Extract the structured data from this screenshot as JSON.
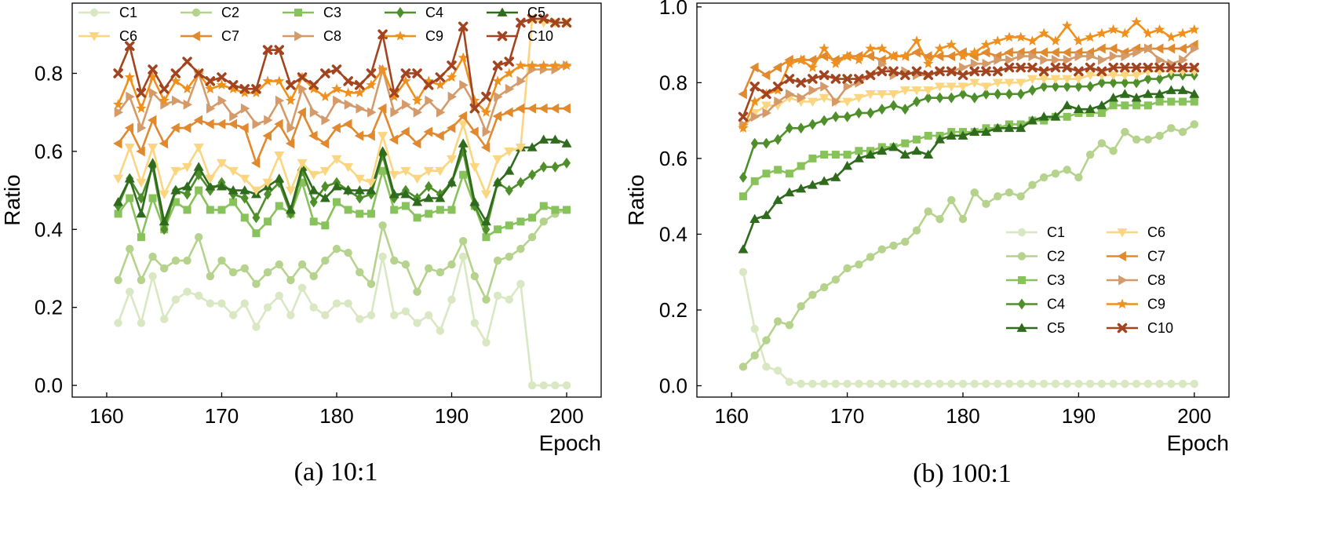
{
  "chart_data": [
    {
      "type": "line",
      "caption": "(a) 10:1",
      "xlabel": "Epoch",
      "ylabel": "Ratio",
      "xlim": [
        157,
        203
      ],
      "ylim": [
        -0.03,
        0.98
      ],
      "xticks": [
        160,
        170,
        180,
        190,
        200
      ],
      "yticks": [
        0.0,
        0.2,
        0.4,
        0.6,
        0.8
      ],
      "ytick_labels": [
        "0.0",
        "0.2",
        "0.4",
        "0.6",
        "0.8"
      ],
      "legend_placement": "top",
      "x_start": 161,
      "series": [
        {
          "name": "C1",
          "values": [
            0.16,
            0.24,
            0.16,
            0.28,
            0.17,
            0.22,
            0.24,
            0.23,
            0.21,
            0.21,
            0.18,
            0.21,
            0.15,
            0.2,
            0.23,
            0.18,
            0.25,
            0.2,
            0.18,
            0.21,
            0.21,
            0.17,
            0.18,
            0.33,
            0.18,
            0.19,
            0.16,
            0.18,
            0.14,
            0.22,
            0.33,
            0.16,
            0.11,
            0.23,
            0.22,
            0.26,
            0.0,
            0.0,
            0.0,
            0.0
          ]
        },
        {
          "name": "C2",
          "values": [
            0.27,
            0.35,
            0.27,
            0.33,
            0.3,
            0.32,
            0.32,
            0.38,
            0.28,
            0.32,
            0.29,
            0.3,
            0.26,
            0.29,
            0.31,
            0.27,
            0.31,
            0.28,
            0.32,
            0.35,
            0.34,
            0.29,
            0.26,
            0.41,
            0.32,
            0.31,
            0.24,
            0.3,
            0.29,
            0.31,
            0.37,
            0.28,
            0.22,
            0.32,
            0.33,
            0.35,
            0.38,
            0.42,
            0.44,
            0.45
          ]
        },
        {
          "name": "C3",
          "values": [
            0.44,
            0.48,
            0.38,
            0.48,
            0.4,
            0.47,
            0.45,
            0.5,
            0.45,
            0.45,
            0.47,
            0.43,
            0.39,
            0.42,
            0.46,
            0.44,
            0.52,
            0.42,
            0.41,
            0.47,
            0.45,
            0.44,
            0.44,
            0.55,
            0.45,
            0.46,
            0.43,
            0.44,
            0.45,
            0.45,
            0.54,
            0.46,
            0.38,
            0.4,
            0.41,
            0.42,
            0.43,
            0.46,
            0.45,
            0.45
          ]
        },
        {
          "name": "C4",
          "values": [
            0.46,
            0.53,
            0.48,
            0.56,
            0.4,
            0.5,
            0.49,
            0.54,
            0.5,
            0.52,
            0.49,
            0.48,
            0.43,
            0.49,
            0.52,
            0.44,
            0.55,
            0.47,
            0.51,
            0.52,
            0.5,
            0.48,
            0.49,
            0.59,
            0.48,
            0.5,
            0.48,
            0.51,
            0.49,
            0.52,
            0.6,
            0.46,
            0.4,
            0.52,
            0.5,
            0.52,
            0.54,
            0.56,
            0.56,
            0.57
          ]
        },
        {
          "name": "C5",
          "values": [
            0.47,
            0.53,
            0.44,
            0.57,
            0.42,
            0.5,
            0.51,
            0.56,
            0.51,
            0.51,
            0.5,
            0.5,
            0.49,
            0.51,
            0.53,
            0.45,
            0.56,
            0.5,
            0.48,
            0.51,
            0.5,
            0.5,
            0.5,
            0.6,
            0.49,
            0.49,
            0.47,
            0.48,
            0.48,
            0.52,
            0.62,
            0.47,
            0.42,
            0.52,
            0.55,
            0.61,
            0.61,
            0.63,
            0.63,
            0.62
          ]
        },
        {
          "name": "C6",
          "values": [
            0.53,
            0.61,
            0.52,
            0.61,
            0.49,
            0.55,
            0.56,
            0.61,
            0.53,
            0.57,
            0.55,
            0.53,
            0.5,
            0.52,
            0.59,
            0.5,
            0.57,
            0.54,
            0.55,
            0.58,
            0.56,
            0.53,
            0.52,
            0.64,
            0.54,
            0.55,
            0.53,
            0.55,
            0.55,
            0.58,
            0.67,
            0.56,
            0.49,
            0.58,
            0.6,
            0.61,
            0.94,
            0.93,
            0.93,
            0.93
          ]
        },
        {
          "name": "C7",
          "values": [
            0.62,
            0.66,
            0.6,
            0.68,
            0.62,
            0.66,
            0.66,
            0.68,
            0.67,
            0.67,
            0.67,
            0.66,
            0.57,
            0.64,
            0.67,
            0.62,
            0.7,
            0.64,
            0.62,
            0.66,
            0.67,
            0.64,
            0.64,
            0.71,
            0.63,
            0.65,
            0.62,
            0.65,
            0.64,
            0.66,
            0.69,
            0.65,
            0.61,
            0.69,
            0.7,
            0.71,
            0.71,
            0.71,
            0.71,
            0.71
          ]
        },
        {
          "name": "C8",
          "values": [
            0.7,
            0.74,
            0.66,
            0.75,
            0.72,
            0.73,
            0.72,
            0.8,
            0.71,
            0.73,
            0.69,
            0.71,
            0.67,
            0.68,
            0.73,
            0.66,
            0.76,
            0.7,
            0.68,
            0.73,
            0.72,
            0.71,
            0.7,
            0.81,
            0.7,
            0.72,
            0.7,
            0.73,
            0.7,
            0.74,
            0.77,
            0.72,
            0.65,
            0.74,
            0.76,
            0.78,
            0.81,
            0.81,
            0.81,
            0.82
          ]
        },
        {
          "name": "C9",
          "values": [
            0.72,
            0.79,
            0.71,
            0.79,
            0.73,
            0.78,
            0.76,
            0.8,
            0.76,
            0.77,
            0.76,
            0.75,
            0.75,
            0.78,
            0.78,
            0.73,
            0.79,
            0.76,
            0.74,
            0.76,
            0.75,
            0.75,
            0.77,
            0.81,
            0.74,
            0.78,
            0.73,
            0.78,
            0.77,
            0.79,
            0.84,
            0.73,
            0.7,
            0.78,
            0.8,
            0.82,
            0.82,
            0.82,
            0.82,
            0.82
          ]
        },
        {
          "name": "C10",
          "values": [
            0.8,
            0.87,
            0.75,
            0.81,
            0.76,
            0.8,
            0.83,
            0.8,
            0.78,
            0.79,
            0.77,
            0.76,
            0.76,
            0.86,
            0.86,
            0.77,
            0.79,
            0.77,
            0.8,
            0.81,
            0.78,
            0.77,
            0.8,
            0.9,
            0.75,
            0.8,
            0.8,
            0.77,
            0.79,
            0.82,
            0.92,
            0.71,
            0.74,
            0.82,
            0.83,
            0.93,
            0.94,
            0.94,
            0.93,
            0.93
          ]
        }
      ]
    },
    {
      "type": "line",
      "caption": "(b) 100:1",
      "xlabel": "Epoch",
      "ylabel": "Ratio",
      "xlim": [
        157,
        203
      ],
      "ylim": [
        -0.03,
        1.01
      ],
      "xticks": [
        160,
        170,
        180,
        190,
        200
      ],
      "yticks": [
        0.0,
        0.2,
        0.4,
        0.6,
        0.8,
        1.0
      ],
      "ytick_labels": [
        "0.0",
        "0.2",
        "0.4",
        "0.6",
        "0.8",
        "1.0"
      ],
      "legend_placement": "lower-right",
      "x_start": 161,
      "series": [
        {
          "name": "C1",
          "values": [
            0.3,
            0.15,
            0.05,
            0.04,
            0.01,
            0.005,
            0.005,
            0.005,
            0.005,
            0.005,
            0.005,
            0.005,
            0.005,
            0.005,
            0.005,
            0.005,
            0.005,
            0.005,
            0.005,
            0.005,
            0.005,
            0.005,
            0.005,
            0.005,
            0.005,
            0.005,
            0.005,
            0.005,
            0.005,
            0.005,
            0.005,
            0.005,
            0.005,
            0.005,
            0.005,
            0.005,
            0.005,
            0.005,
            0.005,
            0.005
          ]
        },
        {
          "name": "C2",
          "values": [
            0.05,
            0.08,
            0.12,
            0.17,
            0.16,
            0.21,
            0.24,
            0.26,
            0.28,
            0.31,
            0.32,
            0.34,
            0.36,
            0.37,
            0.38,
            0.41,
            0.46,
            0.44,
            0.49,
            0.44,
            0.51,
            0.48,
            0.5,
            0.51,
            0.5,
            0.53,
            0.55,
            0.56,
            0.57,
            0.55,
            0.61,
            0.64,
            0.62,
            0.67,
            0.65,
            0.65,
            0.66,
            0.68,
            0.67,
            0.69
          ]
        },
        {
          "name": "C3",
          "values": [
            0.5,
            0.54,
            0.56,
            0.57,
            0.56,
            0.58,
            0.6,
            0.61,
            0.61,
            0.61,
            0.62,
            0.62,
            0.63,
            0.63,
            0.64,
            0.65,
            0.66,
            0.66,
            0.67,
            0.67,
            0.67,
            0.68,
            0.68,
            0.69,
            0.69,
            0.7,
            0.7,
            0.71,
            0.71,
            0.72,
            0.72,
            0.72,
            0.74,
            0.74,
            0.74,
            0.74,
            0.75,
            0.75,
            0.75,
            0.75
          ]
        },
        {
          "name": "C4",
          "values": [
            0.55,
            0.64,
            0.64,
            0.65,
            0.68,
            0.68,
            0.69,
            0.7,
            0.71,
            0.71,
            0.72,
            0.72,
            0.73,
            0.74,
            0.73,
            0.75,
            0.76,
            0.76,
            0.76,
            0.77,
            0.76,
            0.77,
            0.77,
            0.77,
            0.77,
            0.78,
            0.79,
            0.79,
            0.79,
            0.79,
            0.79,
            0.8,
            0.8,
            0.8,
            0.8,
            0.81,
            0.81,
            0.82,
            0.82,
            0.82
          ]
        },
        {
          "name": "C5",
          "values": [
            0.36,
            0.44,
            0.45,
            0.49,
            0.51,
            0.52,
            0.53,
            0.54,
            0.55,
            0.58,
            0.6,
            0.61,
            0.62,
            0.63,
            0.61,
            0.62,
            0.61,
            0.65,
            0.66,
            0.66,
            0.67,
            0.67,
            0.68,
            0.68,
            0.68,
            0.7,
            0.71,
            0.71,
            0.74,
            0.73,
            0.73,
            0.74,
            0.76,
            0.77,
            0.76,
            0.77,
            0.77,
            0.78,
            0.78,
            0.77
          ]
        },
        {
          "name": "C6",
          "values": [
            0.68,
            0.72,
            0.74,
            0.74,
            0.76,
            0.75,
            0.75,
            0.76,
            0.75,
            0.75,
            0.76,
            0.77,
            0.77,
            0.77,
            0.78,
            0.78,
            0.78,
            0.79,
            0.79,
            0.79,
            0.8,
            0.79,
            0.8,
            0.8,
            0.8,
            0.81,
            0.81,
            0.81,
            0.81,
            0.81,
            0.82,
            0.82,
            0.82,
            0.82,
            0.82,
            0.83,
            0.83,
            0.83,
            0.83,
            0.83
          ]
        },
        {
          "name": "C7",
          "values": [
            0.77,
            0.84,
            0.82,
            0.84,
            0.86,
            0.86,
            0.86,
            0.87,
            0.86,
            0.87,
            0.87,
            0.87,
            0.86,
            0.87,
            0.87,
            0.88,
            0.87,
            0.87,
            0.87,
            0.88,
            0.87,
            0.88,
            0.87,
            0.88,
            0.88,
            0.88,
            0.88,
            0.88,
            0.88,
            0.88,
            0.88,
            0.89,
            0.89,
            0.88,
            0.89,
            0.89,
            0.89,
            0.89,
            0.89,
            0.9
          ]
        },
        {
          "name": "C8",
          "values": [
            0.69,
            0.71,
            0.72,
            0.75,
            0.77,
            0.76,
            0.78,
            0.79,
            0.75,
            0.79,
            0.8,
            0.82,
            0.85,
            0.82,
            0.83,
            0.82,
            0.82,
            0.83,
            0.83,
            0.84,
            0.85,
            0.85,
            0.86,
            0.86,
            0.87,
            0.87,
            0.86,
            0.86,
            0.86,
            0.87,
            0.87,
            0.86,
            0.87,
            0.87,
            0.88,
            0.89,
            0.86,
            0.85,
            0.86,
            0.89
          ]
        },
        {
          "name": "C9",
          "values": [
            0.68,
            0.75,
            0.77,
            0.78,
            0.85,
            0.86,
            0.84,
            0.89,
            0.85,
            0.87,
            0.86,
            0.89,
            0.89,
            0.87,
            0.87,
            0.91,
            0.85,
            0.89,
            0.9,
            0.87,
            0.88,
            0.9,
            0.91,
            0.92,
            0.92,
            0.91,
            0.93,
            0.91,
            0.95,
            0.91,
            0.92,
            0.93,
            0.94,
            0.93,
            0.96,
            0.93,
            0.94,
            0.92,
            0.93,
            0.94
          ]
        },
        {
          "name": "C10",
          "values": [
            0.71,
            0.79,
            0.77,
            0.79,
            0.81,
            0.8,
            0.81,
            0.82,
            0.81,
            0.81,
            0.81,
            0.82,
            0.83,
            0.83,
            0.82,
            0.83,
            0.82,
            0.83,
            0.83,
            0.82,
            0.83,
            0.83,
            0.83,
            0.84,
            0.84,
            0.84,
            0.83,
            0.84,
            0.84,
            0.83,
            0.84,
            0.83,
            0.84,
            0.84,
            0.84,
            0.84,
            0.84,
            0.84,
            0.84,
            0.84
          ]
        }
      ]
    }
  ],
  "series_styles": [
    {
      "name": "C1",
      "color": "#d9e8c3",
      "marker": "circle"
    },
    {
      "name": "C2",
      "color": "#b5d38c",
      "marker": "circle"
    },
    {
      "name": "C3",
      "color": "#88c25a",
      "marker": "square"
    },
    {
      "name": "C4",
      "color": "#4e8f2b",
      "marker": "diamond"
    },
    {
      "name": "C5",
      "color": "#2f6b1c",
      "marker": "triangle-up"
    },
    {
      "name": "C6",
      "color": "#fbd57f",
      "marker": "triangle-down"
    },
    {
      "name": "C7",
      "color": "#e0892f",
      "marker": "triangle-left"
    },
    {
      "name": "C8",
      "color": "#d49a6a",
      "marker": "triangle-right"
    },
    {
      "name": "C9",
      "color": "#f0901c",
      "marker": "star"
    },
    {
      "name": "C10",
      "color": "#a1441f",
      "marker": "x"
    }
  ]
}
